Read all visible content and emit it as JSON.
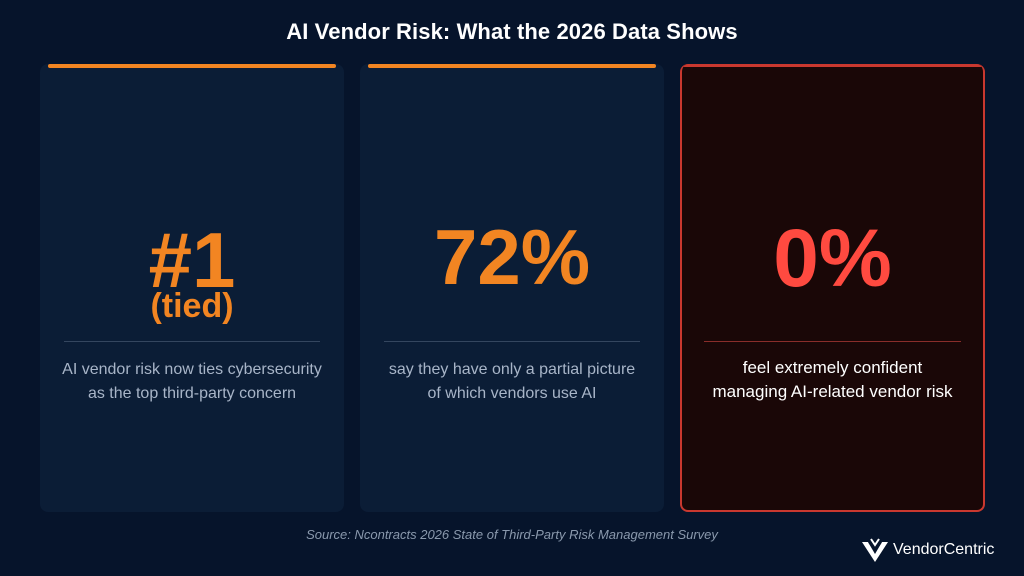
{
  "header": {
    "title": "AI Vendor Risk: What the 2026 Data Shows"
  },
  "cards": [
    {
      "stat": "#1",
      "substat": "(tied)",
      "desc_line1": "AI vendor risk now ties cybersecurity",
      "desc_line2": "as the top third-party concern",
      "accent_color": "#f28522"
    },
    {
      "stat": "72%",
      "desc_line1": "say they have only a partial picture",
      "desc_line2": "of which vendors use AI",
      "accent_color": "#f28522"
    },
    {
      "stat": "0%",
      "desc_line1": "feel extremely confident",
      "desc_line2": "managing AI-related vendor risk",
      "accent_color": "#ff4a40"
    }
  ],
  "footer": {
    "source": "Source: Ncontracts 2026 State of Third-Party Risk Management Survey"
  },
  "logo": {
    "text": "VendorCentric",
    "icon": "vendorcentric-logo-icon"
  },
  "colors": {
    "background": "#06142b",
    "card": "#0b1d36",
    "highlight_card": "#1a0707",
    "orange": "#f28522",
    "red": "#ff4a40"
  }
}
